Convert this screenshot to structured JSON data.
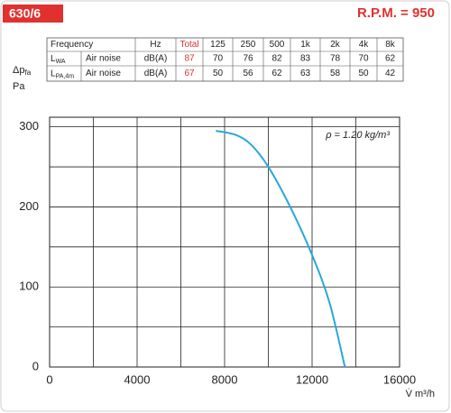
{
  "header": {
    "model": "630/6",
    "rpm": "R.P.M. = 950"
  },
  "table": {
    "header": [
      "Frequency",
      "Hz",
      "Total",
      "125",
      "250",
      "500",
      "1k",
      "2k",
      "4k",
      "8k"
    ],
    "rows": [
      [
        "L",
        "WA",
        "Air noise",
        "dB(A)",
        87,
        70,
        76,
        82,
        83,
        78,
        70,
        62
      ],
      [
        "L",
        "PA,4m",
        "Air noise",
        "dB(A)",
        67,
        50,
        56,
        62,
        63,
        58,
        50,
        42
      ]
    ]
  },
  "chart_data": {
    "type": "line",
    "y_label": "Δp",
    "y_label_sub": "fa",
    "y_unit": "Pa",
    "x_label": "V̇ m³/h",
    "annotation": "ρ = 1.20 kg/m³",
    "x": [
      7600,
      8500,
      9200,
      10000,
      11000,
      12000,
      12800,
      13500
    ],
    "values": [
      295,
      290,
      278,
      250,
      200,
      140,
      80,
      0
    ],
    "color": "#29a8d8",
    "xlim": [
      0,
      16000
    ],
    "xticks": [
      0,
      4000,
      8000,
      12000,
      16000
    ],
    "xgrid_minor": [
      2000,
      6000,
      10000,
      14000
    ],
    "ylim": [
      0,
      312
    ],
    "yticks": [
      0,
      100,
      200,
      300
    ],
    "ygrid_minor": [
      50,
      150,
      250
    ],
    "grid": true
  }
}
